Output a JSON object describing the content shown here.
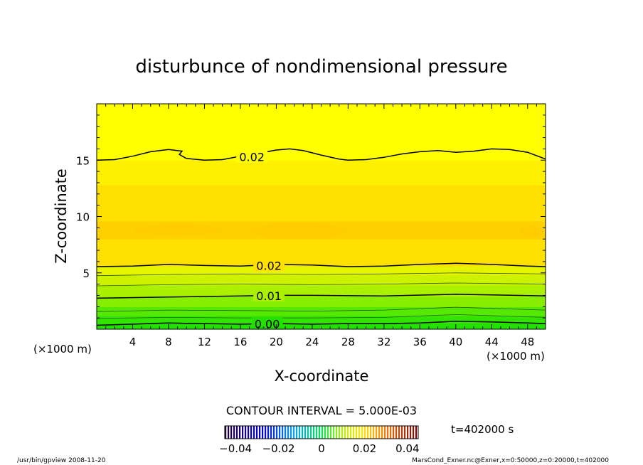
{
  "chart_data": {
    "type": "contour",
    "title": "disturbunce of nondimensional pressure",
    "xlabel": "X-coordinate",
    "ylabel": "Z-coordinate",
    "x_unit": "(×1000 m)",
    "y_unit": "(×1000 m)",
    "xlim": [
      0,
      50
    ],
    "ylim": [
      0,
      20
    ],
    "x_ticks": [
      4,
      8,
      12,
      16,
      20,
      24,
      28,
      32,
      36,
      40,
      44,
      48
    ],
    "y_ticks": [
      5,
      10,
      15
    ],
    "contour_interval_text": "CONTOUR INTERVAL = 5.000E-03",
    "time_text": "t=402000 s",
    "colorbar": {
      "range": [
        -0.045,
        0.045
      ],
      "ticks": [
        -0.04,
        -0.02,
        0,
        0.02,
        0.04
      ],
      "tick_labels": [
        "−0.04",
        "−0.02",
        "0",
        "0.02",
        "0.04"
      ]
    },
    "bands": [
      {
        "z": [
          0,
          0.5
        ],
        "color": "#22e000"
      },
      {
        "z": [
          0.5,
          1.2
        ],
        "color": "#33e400"
      },
      {
        "z": [
          1.2,
          2.0
        ],
        "color": "#55e800"
      },
      {
        "z": [
          2.0,
          2.9
        ],
        "color": "#88ee00"
      },
      {
        "z": [
          2.9,
          3.9
        ],
        "color": "#aaf000"
      },
      {
        "z": [
          3.9,
          4.8
        ],
        "color": "#ccf200"
      },
      {
        "z": [
          4.8,
          5.6
        ],
        "color": "#e6f400"
      },
      {
        "z": [
          5.6,
          8.0
        ],
        "color": "#ffe000"
      },
      {
        "z": [
          8.0,
          9.6
        ],
        "color": "#ffd000"
      },
      {
        "z": [
          9.6,
          12.8
        ],
        "color": "#ffe000"
      },
      {
        "z": [
          12.8,
          15.0
        ],
        "color": "#fff000"
      },
      {
        "z": [
          15.0,
          20.0
        ],
        "color": "#ffff00"
      }
    ],
    "contours": [
      {
        "level": "0.00",
        "label_x": 17.4,
        "points": [
          [
            0,
            0.35
          ],
          [
            4,
            0.45
          ],
          [
            8,
            0.55
          ],
          [
            12,
            0.5
          ],
          [
            16,
            0.45
          ],
          [
            20,
            0.5
          ],
          [
            24,
            0.45
          ],
          [
            28,
            0.5
          ],
          [
            32,
            0.5
          ],
          [
            36,
            0.55
          ],
          [
            40,
            0.7
          ],
          [
            44,
            0.65
          ],
          [
            48,
            0.55
          ],
          [
            50,
            0.5
          ]
        ]
      },
      {
        "level": "",
        "label_x": null,
        "points": [
          [
            0,
            0.95
          ],
          [
            8,
            1.05
          ],
          [
            16,
            1.0
          ],
          [
            24,
            1.0
          ],
          [
            32,
            1.05
          ],
          [
            40,
            1.3
          ],
          [
            44,
            1.2
          ],
          [
            50,
            1.05
          ]
        ]
      },
      {
        "level": "",
        "label_x": null,
        "points": [
          [
            0,
            1.55
          ],
          [
            8,
            1.7
          ],
          [
            16,
            1.65
          ],
          [
            24,
            1.6
          ],
          [
            32,
            1.7
          ],
          [
            40,
            1.95
          ],
          [
            44,
            1.85
          ],
          [
            50,
            1.7
          ]
        ]
      },
      {
        "level": "0.01",
        "label_x": 17.6,
        "points": [
          [
            0,
            2.75
          ],
          [
            8,
            2.85
          ],
          [
            16,
            2.95
          ],
          [
            20,
            3.0
          ],
          [
            24,
            3.0
          ],
          [
            32,
            2.95
          ],
          [
            40,
            3.1
          ],
          [
            44,
            3.05
          ],
          [
            50,
            2.95
          ]
        ]
      },
      {
        "level": "",
        "label_x": null,
        "points": [
          [
            0,
            3.85
          ],
          [
            8,
            3.95
          ],
          [
            16,
            4.0
          ],
          [
            24,
            3.95
          ],
          [
            32,
            4.0
          ],
          [
            40,
            4.1
          ],
          [
            50,
            4.0
          ]
        ]
      },
      {
        "level": "",
        "label_x": null,
        "points": [
          [
            0,
            4.75
          ],
          [
            8,
            4.85
          ],
          [
            16,
            4.9
          ],
          [
            24,
            4.85
          ],
          [
            32,
            4.9
          ],
          [
            40,
            5.0
          ],
          [
            50,
            4.9
          ]
        ]
      },
      {
        "level": "0.02",
        "label_x": 17.6,
        "points": [
          [
            0,
            5.55
          ],
          [
            4,
            5.6
          ],
          [
            8,
            5.75
          ],
          [
            12,
            5.65
          ],
          [
            16,
            5.6
          ],
          [
            20,
            5.75
          ],
          [
            24,
            5.7
          ],
          [
            28,
            5.55
          ],
          [
            32,
            5.6
          ],
          [
            36,
            5.75
          ],
          [
            40,
            5.85
          ],
          [
            44,
            5.75
          ],
          [
            48,
            5.6
          ],
          [
            50,
            5.55
          ]
        ]
      },
      {
        "level": "0.02",
        "label_x": 15.7,
        "points": [
          [
            0,
            15.0
          ],
          [
            2,
            15.05
          ],
          [
            4,
            15.35
          ],
          [
            6,
            15.75
          ],
          [
            8,
            15.95
          ],
          [
            9.5,
            15.8
          ],
          [
            9.2,
            15.5
          ],
          [
            10,
            15.15
          ],
          [
            12,
            15.0
          ],
          [
            14,
            15.05
          ],
          [
            16,
            15.35
          ],
          [
            18,
            15.6
          ],
          [
            20,
            15.9
          ],
          [
            21.5,
            16.0
          ],
          [
            23,
            15.85
          ],
          [
            25,
            15.45
          ],
          [
            27,
            15.1
          ],
          [
            28,
            15.0
          ],
          [
            30,
            15.05
          ],
          [
            32,
            15.25
          ],
          [
            34,
            15.55
          ],
          [
            36,
            15.75
          ],
          [
            38,
            15.85
          ],
          [
            40,
            15.7
          ],
          [
            42,
            15.8
          ],
          [
            44,
            16.0
          ],
          [
            46,
            15.95
          ],
          [
            48,
            15.7
          ],
          [
            50,
            15.1
          ]
        ]
      }
    ]
  },
  "footer": {
    "left": "/usr/bin/gpview   2008-11-20",
    "right": "MarsCond_Exner.nc@Exner,x=0:50000,z=0:20000,t=402000"
  }
}
